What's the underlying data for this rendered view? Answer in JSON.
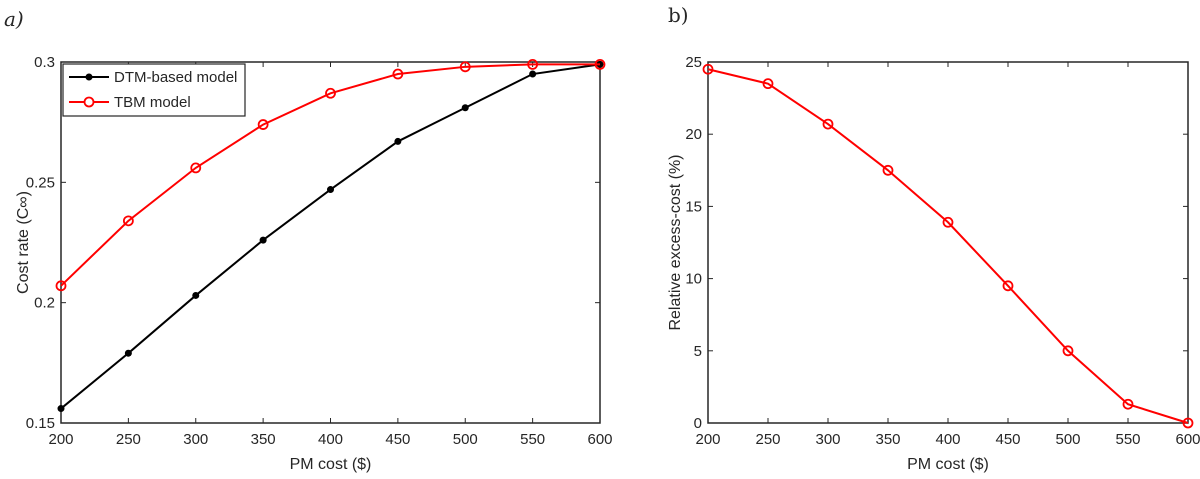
{
  "chart_data": [
    {
      "type": "line",
      "panel_label": "a)",
      "xlabel": "PM cost ($)",
      "ylabel": "Cost rate (C∞)",
      "x": [
        200,
        250,
        300,
        350,
        400,
        450,
        500,
        550,
        600
      ],
      "xlim": [
        200,
        600
      ],
      "ylim": [
        0.15,
        0.3
      ],
      "xticks": [
        "200",
        "250",
        "300",
        "350",
        "400",
        "450",
        "500",
        "550",
        "600"
      ],
      "yticks": [
        "0.15",
        "0.2",
        "0.25",
        "0.3"
      ],
      "grid": false,
      "legend_position": "top-left",
      "series": [
        {
          "name": "DTM-based model",
          "color": "#000000",
          "marker": "filled-circle",
          "values": [
            0.156,
            0.179,
            0.203,
            0.226,
            0.247,
            0.267,
            0.281,
            0.295,
            0.299
          ]
        },
        {
          "name": "TBM model",
          "color": "#ff0000",
          "marker": "open-circle",
          "values": [
            0.207,
            0.234,
            0.256,
            0.274,
            0.287,
            0.295,
            0.298,
            0.299,
            0.299
          ]
        }
      ]
    },
    {
      "type": "line",
      "panel_label": "b)",
      "xlabel": "PM cost ($)",
      "ylabel": "Relative excess-cost (%)",
      "x": [
        200,
        250,
        300,
        350,
        400,
        450,
        500,
        550,
        600
      ],
      "xlim": [
        200,
        600
      ],
      "ylim": [
        0,
        25
      ],
      "xticks": [
        "200",
        "250",
        "300",
        "350",
        "400",
        "450",
        "500",
        "550",
        "600"
      ],
      "yticks": [
        "0",
        "5",
        "10",
        "15",
        "20",
        "25"
      ],
      "grid": false,
      "series": [
        {
          "color": "#ff0000",
          "marker": "open-circle",
          "values": [
            24.5,
            23.5,
            20.7,
            17.5,
            13.9,
            9.5,
            5.0,
            1.3,
            0.0
          ]
        }
      ]
    }
  ]
}
